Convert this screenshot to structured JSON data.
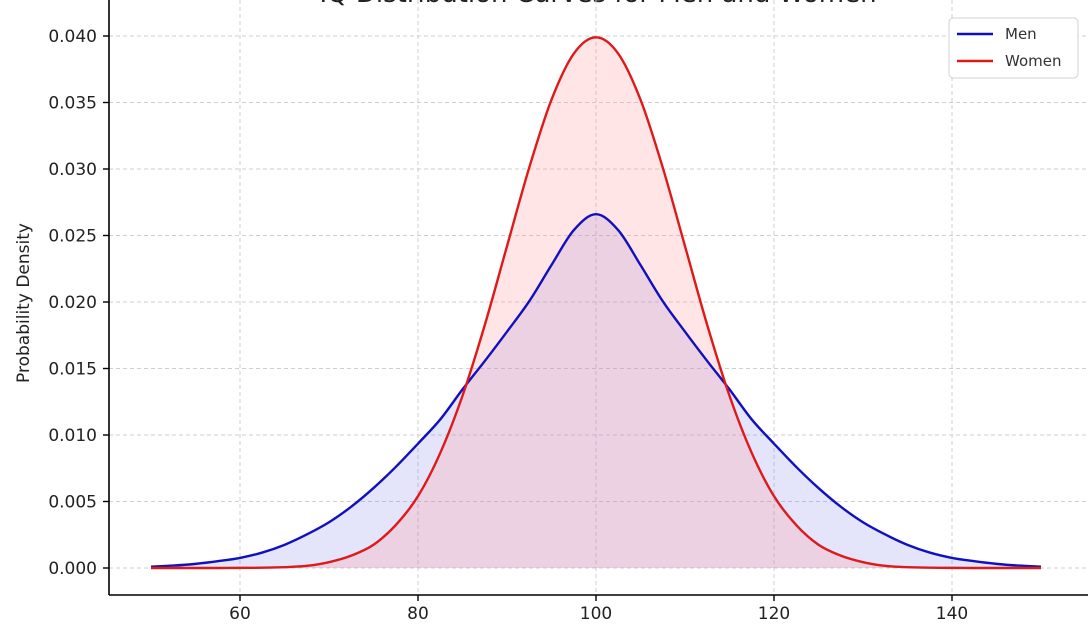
{
  "chart_data": {
    "type": "area",
    "title": "IQ Distribution Curves for Men and Women",
    "xlabel": "",
    "ylabel": "Probability Density",
    "xlim": [
      45,
      155
    ],
    "ylim": [
      -0.002,
      0.042
    ],
    "xticks": [
      60,
      80,
      100,
      120,
      140
    ],
    "yticks": [
      0.0,
      0.005,
      0.01,
      0.015,
      0.02,
      0.025,
      0.03,
      0.035,
      0.04
    ],
    "xtick_labels": [
      "60",
      "80",
      "100",
      "120",
      "140"
    ],
    "ytick_labels": [
      "0.000",
      "0.005",
      "0.010",
      "0.015",
      "0.020",
      "0.025",
      "0.030",
      "0.035",
      "0.040"
    ],
    "grid": true,
    "legend_position": "top-right",
    "x": [
      50,
      52.5,
      55,
      57.5,
      60,
      62.5,
      65,
      67.5,
      70,
      72.5,
      75,
      77.5,
      80,
      82.5,
      85,
      87.5,
      90,
      92.5,
      95,
      97.5,
      100,
      102.5,
      105,
      107.5,
      110,
      112.5,
      115,
      117.5,
      120,
      122.5,
      125,
      127.5,
      130,
      132.5,
      135,
      137.5,
      140,
      142.5,
      145,
      147.5,
      150
    ],
    "series": [
      {
        "name": "Men",
        "color": "#1010c0",
        "fill": "rgba(120,120,235,0.20)",
        "values": [
          0.0001,
          0.00018,
          0.00031,
          0.00051,
          0.00076,
          0.00116,
          0.00174,
          0.00252,
          0.00344,
          0.00461,
          0.00601,
          0.0076,
          0.00935,
          0.01117,
          0.01343,
          0.01556,
          0.01777,
          0.02006,
          0.02278,
          0.0254,
          0.0266,
          0.0254,
          0.02278,
          0.02006,
          0.01777,
          0.01556,
          0.01343,
          0.01117,
          0.00935,
          0.0076,
          0.00601,
          0.00461,
          0.00344,
          0.00252,
          0.00174,
          0.00116,
          0.00076,
          0.00051,
          0.00031,
          0.00018,
          0.0001
        ]
      },
      {
        "name": "Women",
        "color": "#dd1a1a",
        "fill": "rgba(255,150,150,0.25)",
        "values": [
          0.0,
          0.0,
          0.0,
          0.0,
          1e-05,
          2e-05,
          6e-05,
          0.00016,
          0.00044,
          0.00093,
          0.00175,
          0.00323,
          0.0054,
          0.00865,
          0.01295,
          0.01826,
          0.0242,
          0.03011,
          0.03521,
          0.03867,
          0.0399,
          0.03867,
          0.03521,
          0.03011,
          0.0242,
          0.01826,
          0.01295,
          0.00865,
          0.0054,
          0.00323,
          0.00175,
          0.00093,
          0.00044,
          0.00016,
          6e-05,
          2e-05,
          1e-05,
          0.0,
          0.0,
          0.0,
          0.0
        ]
      }
    ]
  }
}
